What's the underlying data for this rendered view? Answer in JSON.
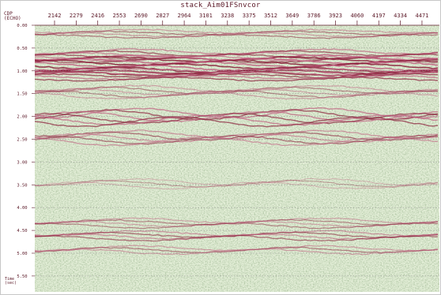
{
  "title": "stack_Aim01FSnvcor",
  "cdp_axis": {
    "label_line1": "CDP",
    "label_line2": "(ECHO)",
    "ticks": [
      "2142",
      "2279",
      "2416",
      "2553",
      "2690",
      "2827",
      "2964",
      "3101",
      "3238",
      "3375",
      "3512",
      "3649",
      "3786",
      "3923",
      "4060",
      "4197",
      "4334",
      "4471"
    ]
  },
  "time_axis": {
    "label_line1": "Time",
    "label_line2": "(sec)",
    "ticks": [
      "0.00",
      "0.50",
      "1.00",
      "1.50",
      "2.00",
      "2.50",
      "3.00",
      "3.50",
      "4.00",
      "4.50",
      "5.00",
      "5.50"
    ]
  },
  "colors": {
    "background_noise": "#d9e8c9",
    "noise_dark": "#6f8f5a",
    "reflector": "#8a1f3a",
    "reflector_light": "#c06080",
    "axis": "#5a1726",
    "gridline": "#999999"
  }
}
